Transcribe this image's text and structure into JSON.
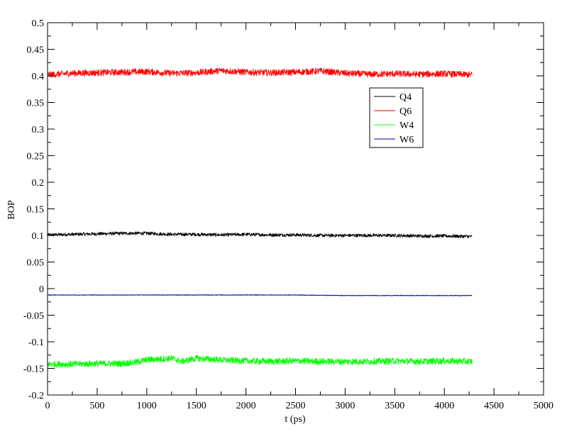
{
  "chart_data": {
    "type": "line",
    "title": "",
    "xlabel": "t (ps)",
    "ylabel": "BOP",
    "xlim": [
      0,
      5000
    ],
    "ylim": [
      -0.2,
      0.5
    ],
    "xticks": [
      0,
      500,
      1000,
      1500,
      2000,
      2500,
      3000,
      3500,
      4000,
      4500,
      5000
    ],
    "xtick_labels": [
      "0",
      "500",
      "1000",
      "1500",
      "2000",
      "2500",
      "3000",
      "3500",
      "4000",
      "4500",
      "5000"
    ],
    "yticks": [
      -0.2,
      -0.15,
      -0.1,
      -0.05,
      0,
      0.05,
      0.1,
      0.15,
      0.2,
      0.25,
      0.3,
      0.35,
      0.4,
      0.45,
      0.5
    ],
    "ytick_labels": [
      "-0.2",
      "-0.15",
      "-0.1",
      "-0.05",
      "0",
      "0.05",
      "0.1",
      "0.15",
      "0.2",
      "0.25",
      "0.3",
      "0.35",
      "0.4",
      "0.45",
      "0.5"
    ],
    "grid": false,
    "legend_position": "upper-right",
    "series": [
      {
        "name": "Q4",
        "color": "#000000",
        "noise": 0.003,
        "x": [
          0,
          250,
          500,
          750,
          1000,
          1250,
          1500,
          1750,
          2000,
          2250,
          2500,
          2750,
          3000,
          3250,
          3500,
          3750,
          4000,
          4280
        ],
        "y": [
          0.101,
          0.102,
          0.103,
          0.104,
          0.104,
          0.102,
          0.102,
          0.101,
          0.102,
          0.101,
          0.101,
          0.1,
          0.1,
          0.1,
          0.1,
          0.099,
          0.099,
          0.098
        ]
      },
      {
        "name": "Q6",
        "color": "#ff0000",
        "noise": 0.006,
        "x": [
          0,
          250,
          500,
          750,
          1000,
          1250,
          1500,
          1750,
          2000,
          2250,
          2500,
          2750,
          3000,
          3250,
          3500,
          3750,
          4000,
          4280
        ],
        "y": [
          0.402,
          0.405,
          0.406,
          0.407,
          0.408,
          0.405,
          0.406,
          0.41,
          0.407,
          0.406,
          0.407,
          0.409,
          0.405,
          0.403,
          0.404,
          0.403,
          0.404,
          0.402
        ]
      },
      {
        "name": "W4",
        "color": "#00ff00",
        "noise": 0.006,
        "x": [
          0,
          250,
          500,
          750,
          900,
          1000,
          1250,
          1350,
          1500,
          1750,
          2000,
          2250,
          2500,
          2750,
          3000,
          3250,
          3500,
          3750,
          4000,
          4280
        ],
        "y": [
          -0.142,
          -0.142,
          -0.141,
          -0.141,
          -0.138,
          -0.134,
          -0.131,
          -0.137,
          -0.131,
          -0.134,
          -0.136,
          -0.137,
          -0.136,
          -0.137,
          -0.137,
          -0.137,
          -0.136,
          -0.137,
          -0.136,
          -0.137
        ]
      },
      {
        "name": "W6",
        "color": "#0000aa",
        "noise": 0.0005,
        "x": [
          0,
          500,
          1000,
          1500,
          2000,
          2500,
          3000,
          3500,
          4000,
          4280
        ],
        "y": [
          -0.012,
          -0.012,
          -0.012,
          -0.012,
          -0.012,
          -0.012,
          -0.013,
          -0.013,
          -0.013,
          -0.013
        ]
      }
    ]
  }
}
